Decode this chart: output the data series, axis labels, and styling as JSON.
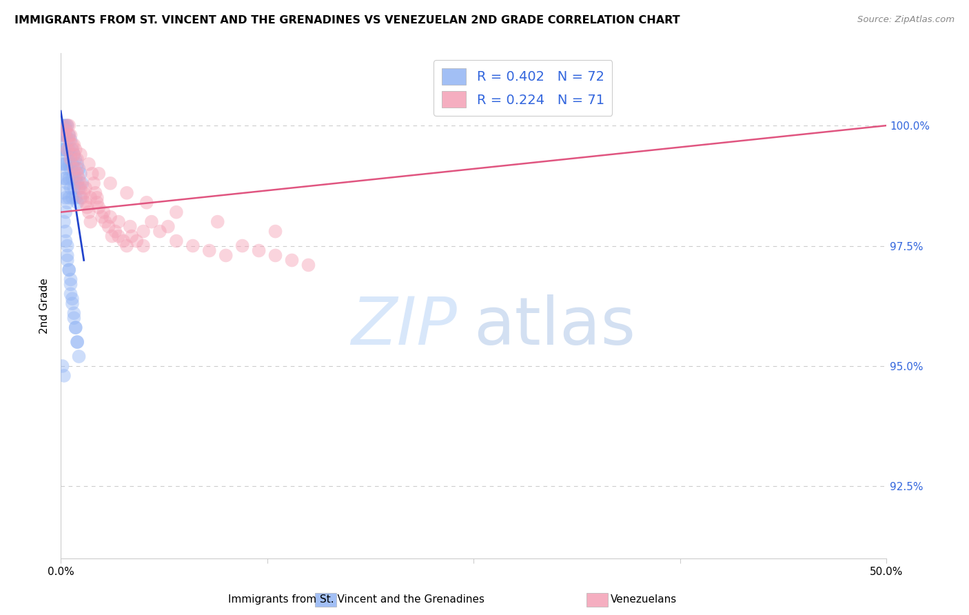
{
  "title": "IMMIGRANTS FROM ST. VINCENT AND THE GRENADINES VS VENEZUELAN 2ND GRADE CORRELATION CHART",
  "source": "Source: ZipAtlas.com",
  "ylabel": "2nd Grade",
  "y_ticks": [
    92.5,
    95.0,
    97.5,
    100.0
  ],
  "y_tick_labels": [
    "92.5%",
    "95.0%",
    "97.5%",
    "100.0%"
  ],
  "xlim": [
    0.0,
    0.5
  ],
  "ylim": [
    91.0,
    101.5
  ],
  "blue_color": "#92b4f4",
  "pink_color": "#f4a0b5",
  "blue_line_color": "#2244cc",
  "pink_line_color": "#e05580",
  "blue_scatter_x": [
    0.001,
    0.001,
    0.001,
    0.001,
    0.002,
    0.002,
    0.002,
    0.002,
    0.002,
    0.002,
    0.003,
    0.003,
    0.003,
    0.003,
    0.003,
    0.003,
    0.003,
    0.004,
    0.004,
    0.004,
    0.004,
    0.004,
    0.004,
    0.005,
    0.005,
    0.005,
    0.005,
    0.005,
    0.006,
    0.006,
    0.006,
    0.006,
    0.007,
    0.007,
    0.007,
    0.007,
    0.008,
    0.008,
    0.008,
    0.009,
    0.009,
    0.009,
    0.01,
    0.01,
    0.01,
    0.011,
    0.011,
    0.012,
    0.012,
    0.013,
    0.003,
    0.004,
    0.004,
    0.005,
    0.006,
    0.006,
    0.007,
    0.008,
    0.009,
    0.01,
    0.002,
    0.003,
    0.004,
    0.005,
    0.006,
    0.007,
    0.008,
    0.009,
    0.01,
    0.011,
    0.001,
    0.002
  ],
  "blue_scatter_y": [
    100.0,
    99.8,
    99.5,
    99.2,
    100.0,
    99.8,
    99.5,
    99.2,
    98.9,
    98.6,
    100.0,
    99.8,
    99.5,
    99.2,
    98.9,
    98.5,
    98.2,
    100.0,
    99.7,
    99.4,
    99.1,
    98.8,
    98.4,
    99.8,
    99.5,
    99.2,
    98.9,
    98.5,
    99.7,
    99.4,
    99.1,
    98.7,
    99.5,
    99.2,
    98.9,
    98.5,
    99.4,
    99.0,
    98.7,
    99.3,
    98.9,
    98.5,
    99.2,
    98.8,
    98.4,
    99.1,
    98.7,
    99.0,
    98.5,
    98.8,
    97.8,
    97.5,
    97.2,
    97.0,
    96.8,
    96.5,
    96.3,
    96.0,
    95.8,
    95.5,
    98.0,
    97.6,
    97.3,
    97.0,
    96.7,
    96.4,
    96.1,
    95.8,
    95.5,
    95.2,
    95.0,
    94.8
  ],
  "pink_scatter_x": [
    0.002,
    0.003,
    0.004,
    0.005,
    0.005,
    0.006,
    0.007,
    0.008,
    0.009,
    0.01,
    0.01,
    0.011,
    0.012,
    0.013,
    0.014,
    0.015,
    0.016,
    0.017,
    0.018,
    0.019,
    0.02,
    0.021,
    0.022,
    0.023,
    0.025,
    0.027,
    0.029,
    0.031,
    0.033,
    0.035,
    0.038,
    0.04,
    0.043,
    0.046,
    0.05,
    0.055,
    0.06,
    0.065,
    0.07,
    0.08,
    0.09,
    0.1,
    0.11,
    0.12,
    0.13,
    0.14,
    0.15,
    0.004,
    0.006,
    0.008,
    0.01,
    0.012,
    0.015,
    0.018,
    0.022,
    0.026,
    0.03,
    0.035,
    0.042,
    0.05,
    0.005,
    0.008,
    0.012,
    0.017,
    0.023,
    0.03,
    0.04,
    0.052,
    0.07,
    0.095,
    0.13
  ],
  "pink_scatter_y": [
    99.8,
    99.9,
    100.0,
    99.7,
    100.0,
    99.8,
    99.6,
    99.4,
    99.5,
    99.3,
    99.1,
    98.9,
    98.7,
    98.5,
    98.6,
    98.4,
    98.3,
    98.2,
    98.0,
    99.0,
    98.8,
    98.6,
    98.5,
    98.3,
    98.1,
    98.0,
    97.9,
    97.7,
    97.8,
    97.7,
    97.6,
    97.5,
    97.7,
    97.6,
    97.5,
    98.0,
    97.8,
    97.9,
    97.6,
    97.5,
    97.4,
    97.3,
    97.5,
    97.4,
    97.3,
    97.2,
    97.1,
    99.5,
    99.3,
    99.1,
    99.0,
    98.8,
    98.7,
    98.5,
    98.4,
    98.2,
    98.1,
    98.0,
    97.9,
    97.8,
    99.8,
    99.6,
    99.4,
    99.2,
    99.0,
    98.8,
    98.6,
    98.4,
    98.2,
    98.0,
    97.8
  ],
  "blue_trendline_x": [
    0.0,
    0.014
  ],
  "blue_trendline_y": [
    100.3,
    97.2
  ],
  "pink_trendline_x": [
    0.0,
    0.5
  ],
  "pink_trendline_y": [
    98.2,
    100.0
  ]
}
